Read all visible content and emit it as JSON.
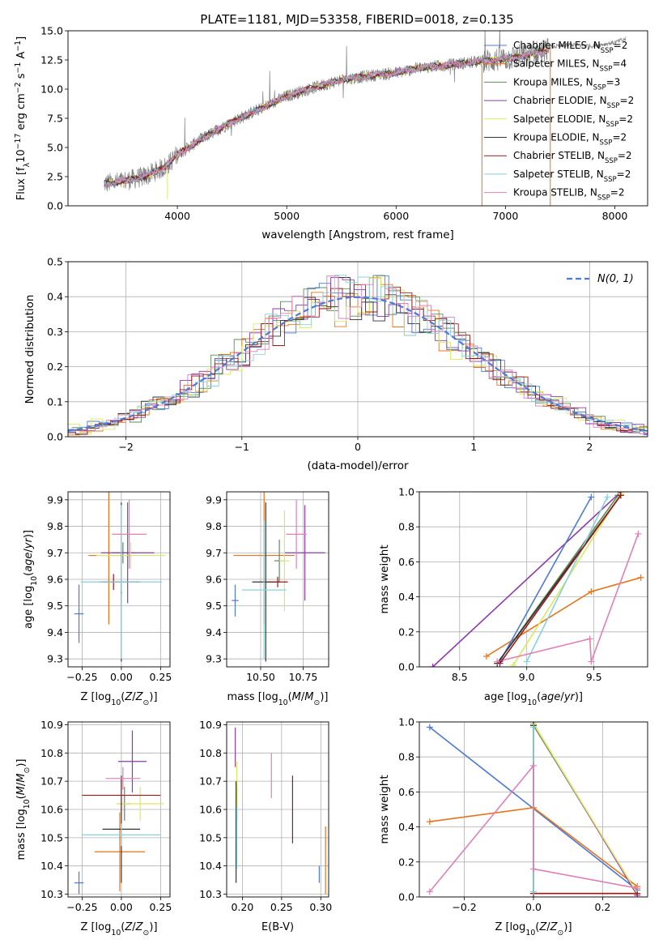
{
  "figure": {
    "title": "PLATE=1181, MJD=53358, FIBERID=0018, z=0.135"
  },
  "colors": {
    "c1": "#4e79d6",
    "c2": "#e8731a",
    "c3": "#5d8a5a",
    "c4": "#8e3aad",
    "c5": "#d9ea5b",
    "c6": "#333333",
    "c7": "#9a1a1a",
    "c8": "#88d1dd",
    "c9": "#e07fb8",
    "data": "#808080",
    "gauss": "#4e79d6"
  },
  "legend_spectrum": [
    "Chabrier MILES, N$_{SSP}$=2",
    "Salpeter MILES, N$_{SSP}$=4",
    "Kroupa MILES, N$_{SSP}$=3",
    "Chabrier ELODIE, N$_{SSP}$=2",
    "Salpeter ELODIE, N$_{SSP}$=2",
    "Kroupa ELODIE, N$_{SSP}$=2",
    "Chabrier STELIB, N$_{SSP}$=2",
    "Salpeter STELIB, N$_{SSP}$=2",
    "Kroupa STELIB, N$_{SSP}$=2"
  ],
  "chart_data": [
    {
      "id": "spectrum",
      "type": "line",
      "title": "PLATE=1181, MJD=53358, FIBERID=0018, z=0.135",
      "xlabel": "wavelength [Angstrom, rest frame]",
      "ylabel": "Flux [f_λ 10^-17 erg cm^-2 s^-1 A^-1]",
      "xlim": [
        3000,
        8300
      ],
      "ylim": [
        0,
        15
      ],
      "xticks": [
        4000,
        5000,
        6000,
        7000,
        8000
      ],
      "yticks": [
        0.0,
        2.5,
        5.0,
        7.5,
        10.0,
        12.5,
        15.0
      ],
      "continuum_x": [
        3330,
        3500,
        3700,
        3900,
        4000,
        4200,
        4500,
        4800,
        5000,
        5200,
        5500,
        5800,
        6000,
        6200,
        6500,
        6800,
        7000,
        7200,
        7400
      ],
      "continuum_y": [
        1.9,
        2.1,
        2.5,
        3.4,
        4.4,
        5.6,
        7.2,
        8.5,
        9.4,
        10.0,
        10.8,
        11.2,
        11.4,
        11.8,
        12.1,
        12.4,
        12.6,
        12.9,
        13.4
      ],
      "data_tail_x": [
        7400,
        7600,
        7800,
        8000,
        8100
      ],
      "data_tail_y": [
        13.6,
        13.8,
        13.7,
        14.0,
        14.3
      ],
      "grid": false,
      "legend": "top-right"
    },
    {
      "id": "residuals",
      "type": "line",
      "xlabel": "(data-model)/error",
      "ylabel": "Normed distribution",
      "xlim": [
        -2.5,
        2.5
      ],
      "ylim": [
        0,
        0.5
      ],
      "xticks": [
        -2,
        -1,
        0,
        1,
        2
      ],
      "yticks": [
        0.0,
        0.1,
        0.2,
        0.3,
        0.4,
        0.5
      ],
      "gaussian_label": "$\\mathcal{N}(0,1)$",
      "grid": true,
      "legend": "top-right"
    },
    {
      "id": "age_vs_Z",
      "type": "scatter",
      "xlabel": "Z [log10(Z/Z⊙)]",
      "ylabel": "age  [log10(age/yr)]",
      "xlim": [
        -0.34,
        0.31
      ],
      "ylim": [
        9.27,
        9.93
      ],
      "xticks": [
        -0.25,
        0.0,
        0.25
      ],
      "yticks": [
        9.3,
        9.4,
        9.5,
        9.6,
        9.7,
        9.8,
        9.9
      ],
      "grid": true,
      "points": [
        {
          "c": "c1",
          "x": -0.27,
          "xerr": 0.03,
          "y": 9.47,
          "yerr": 0.11
        },
        {
          "c": "c1",
          "x": 0.0,
          "xerr": 0.005,
          "y": 9.55,
          "yerr": 0.05
        },
        {
          "c": "c2",
          "x": -0.08,
          "xerr": 0.13,
          "y": 9.69,
          "yerr": 0.26
        },
        {
          "c": "c3",
          "x": 0.01,
          "xerr": 0.07,
          "y": 9.7,
          "yerr": 0.04
        },
        {
          "c": "c4",
          "x": 0.04,
          "xerr": 0.17,
          "y": 9.7,
          "yerr": 0.19
        },
        {
          "c": "c5",
          "x": 0.06,
          "xerr": 0.22,
          "y": 9.69,
          "yerr": 0.05
        },
        {
          "c": "c6",
          "x": 0.0,
          "xerr": 0.12,
          "y": 9.59,
          "yerr": 0.3
        },
        {
          "c": "c7",
          "x": -0.05,
          "xerr": 0.09,
          "y": 9.59,
          "yerr": 0.03
        },
        {
          "c": "c8",
          "x": 0.0,
          "xerr": 0.26,
          "y": 9.59,
          "yerr": 0.29
        },
        {
          "c": "c9",
          "x": 0.05,
          "xerr": 0.11,
          "y": 9.77,
          "yerr": 0.13
        }
      ]
    },
    {
      "id": "age_vs_mass",
      "type": "scatter",
      "xlabel": "mass [log10(M/M⊙)]",
      "ylabel": "",
      "xlim": [
        10.3,
        10.9
      ],
      "ylim": [
        9.27,
        9.93
      ],
      "xticks": [
        10.5,
        10.75
      ],
      "yticks": [
        9.3,
        9.4,
        9.5,
        9.6,
        9.7,
        9.8,
        9.9
      ],
      "grid": true,
      "points": [
        {
          "c": "c1",
          "x": 10.35,
          "xerr": 0.02,
          "y": 9.52,
          "yerr": 0.06
        },
        {
          "c": "c2",
          "x": 10.52,
          "xerr": 0.18,
          "y": 9.69,
          "yerr": 0.26
        },
        {
          "c": "c3",
          "x": 10.61,
          "xerr": 0.03,
          "y": 9.67,
          "yerr": 0.08
        },
        {
          "c": "c4",
          "x": 10.76,
          "xerr": 0.12,
          "y": 9.7,
          "yerr": 0.18
        },
        {
          "c": "c5",
          "x": 10.64,
          "xerr": 0.03,
          "y": 9.67,
          "yerr": 0.19
        },
        {
          "c": "c6",
          "x": 10.53,
          "xerr": 0.08,
          "y": 9.59,
          "yerr": 0.3
        },
        {
          "c": "c7",
          "x": 10.6,
          "xerr": 0.06,
          "y": 9.59,
          "yerr": 0.02
        },
        {
          "c": "c8",
          "x": 10.52,
          "xerr": 0.13,
          "y": 9.56,
          "yerr": 0.26
        },
        {
          "c": "c9",
          "x": 10.71,
          "xerr": 0.06,
          "y": 9.77,
          "yerr": 0.13
        }
      ]
    },
    {
      "id": "mass_weight_vs_age",
      "type": "line",
      "xlabel": "age  [log10(age/yr)]",
      "ylabel": "mass weight",
      "xlim": [
        8.2,
        9.9
      ],
      "ylim": [
        0,
        1
      ],
      "xticks": [
        8.5,
        9.0,
        9.5
      ],
      "yticks": [
        0.0,
        0.2,
        0.4,
        0.6,
        0.8,
        1.0
      ],
      "grid": true,
      "series": [
        {
          "c": "c4",
          "x": [
            8.3,
            9.7
          ],
          "y": [
            0.0,
            1.0
          ]
        },
        {
          "c": "c2",
          "x": [
            8.7,
            9.48,
            9.85
          ],
          "y": [
            0.06,
            0.43,
            0.51
          ]
        },
        {
          "c": "c3",
          "x": [
            8.78,
            9.68
          ],
          "y": [
            0.02,
            0.98
          ]
        },
        {
          "c": "c1",
          "x": [
            8.8,
            9.48
          ],
          "y": [
            0.03,
            0.97
          ]
        },
        {
          "c": "c5",
          "x": [
            8.9,
            9.7
          ],
          "y": [
            0.01,
            0.99
          ]
        },
        {
          "c": "c6",
          "x": [
            8.78,
            9.7
          ],
          "y": [
            0.02,
            0.98
          ]
        },
        {
          "c": "c8",
          "x": [
            9.0,
            9.6
          ],
          "y": [
            0.03,
            0.97
          ]
        },
        {
          "c": "c9",
          "x": [
            8.78,
            9.47,
            9.48,
            9.83
          ],
          "y": [
            0.03,
            0.16,
            0.03,
            0.76
          ]
        },
        {
          "c": "c7",
          "x": [
            8.8,
            9.7
          ],
          "y": [
            0.02,
            0.98
          ]
        }
      ]
    },
    {
      "id": "mass_vs_Z",
      "type": "scatter",
      "xlabel": "Z [log10(Z/Z⊙)]",
      "ylabel": "mass [log10(M/M⊙)]",
      "xlim": [
        -0.34,
        0.31
      ],
      "ylim": [
        10.29,
        10.91
      ],
      "xticks": [
        -0.25,
        0.0,
        0.25
      ],
      "yticks": [
        10.3,
        10.4,
        10.5,
        10.6,
        10.7,
        10.8,
        10.9
      ],
      "grid": true,
      "points": [
        {
          "c": "c1",
          "x": -0.27,
          "xerr": 0.03,
          "y": 10.34,
          "yerr": 0.04
        },
        {
          "c": "c2",
          "x": -0.01,
          "xerr": 0.16,
          "y": 10.45,
          "yerr": 0.14
        },
        {
          "c": "c3",
          "x": 0.02,
          "xerr": 0.04,
          "y": 10.62,
          "yerr": 0.06
        },
        {
          "c": "c4",
          "x": 0.07,
          "xerr": 0.09,
          "y": 10.77,
          "yerr": 0.11
        },
        {
          "c": "c5",
          "x": 0.12,
          "xerr": 0.15,
          "y": 10.62,
          "yerr": 0.06
        },
        {
          "c": "c6",
          "x": 0.0,
          "xerr": 0.12,
          "y": 10.53,
          "yerr": 0.19
        },
        {
          "c": "c7",
          "x": 0.0,
          "xerr": 0.25,
          "y": 10.65,
          "yerr": 0.06
        },
        {
          "c": "c8",
          "x": 0.0,
          "xerr": 0.25,
          "y": 10.51,
          "yerr": 0.04
        },
        {
          "c": "c9",
          "x": 0.01,
          "xerr": 0.11,
          "y": 10.71,
          "yerr": 0.04
        }
      ]
    },
    {
      "id": "mass_vs_ebv",
      "type": "scatter",
      "xlabel": "E(B-V)",
      "ylabel": "",
      "xlim": [
        0.18,
        0.31
      ],
      "ylim": [
        10.29,
        10.91
      ],
      "xticks": [
        0.2,
        0.25,
        0.3
      ],
      "yticks": [
        10.3,
        10.4,
        10.5,
        10.6,
        10.7,
        10.8,
        10.9
      ],
      "grid": true,
      "points": [
        {
          "c": "c1",
          "x": 0.298,
          "y": 10.37,
          "yerr": 0.03
        },
        {
          "c": "c2",
          "x": 0.306,
          "y": 10.42,
          "yerr": 0.12
        },
        {
          "c": "c3",
          "x": 0.193,
          "y": 10.62,
          "yerr": 0.06
        },
        {
          "c": "c4",
          "x": 0.191,
          "y": 10.82,
          "yerr": 0.07
        },
        {
          "c": "c5",
          "x": 0.193,
          "y": 10.69,
          "yerr": 0.08
        },
        {
          "c": "c6",
          "x": 0.192,
          "y": 10.52,
          "yerr": 0.18
        },
        {
          "c": "c7",
          "x": 0.264,
          "y": 10.6,
          "yerr": 0.12
        },
        {
          "c": "c8",
          "x": 0.193,
          "y": 10.5,
          "yerr": 0.11
        },
        {
          "c": "c9",
          "x": 0.237,
          "y": 10.72,
          "yerr": 0.08
        }
      ]
    },
    {
      "id": "mass_weight_vs_Z",
      "type": "line",
      "xlabel": "Z [log10(Z/Z⊙)]",
      "ylabel": "mass weight",
      "xlim": [
        -0.33,
        0.33
      ],
      "ylim": [
        0,
        1
      ],
      "xticks": [
        -0.2,
        0.0,
        0.2
      ],
      "yticks": [
        0.0,
        0.2,
        0.4,
        0.6,
        0.8,
        1.0
      ],
      "grid": true,
      "series": [
        {
          "c": "c1",
          "x": [
            -0.3,
            0.3
          ],
          "y": [
            0.97,
            0.04
          ]
        },
        {
          "c": "c2",
          "x": [
            -0.3,
            0.0,
            0.3
          ],
          "y": [
            0.43,
            0.51,
            0.06
          ]
        },
        {
          "c": "c3",
          "x": [
            0.0,
            0.3
          ],
          "y": [
            0.98,
            0.02
          ]
        },
        {
          "c": "c4",
          "x": [
            0.0,
            0.3
          ],
          "y": [
            0.99,
            0.01
          ]
        },
        {
          "c": "c5",
          "x": [
            0.0,
            0.3
          ],
          "y": [
            0.99,
            0.02
          ]
        },
        {
          "c": "c6",
          "x": [
            0.0,
            0.0
          ],
          "y": [
            0.02,
            0.98
          ]
        },
        {
          "c": "c7",
          "x": [
            0.0,
            0.3
          ],
          "y": [
            0.02,
            0.02
          ]
        },
        {
          "c": "c8",
          "x": [
            0.0,
            0.0
          ],
          "y": [
            0.03,
            0.97
          ]
        },
        {
          "c": "c9",
          "x": [
            -0.3,
            0.0,
            0.0,
            0.3
          ],
          "y": [
            0.03,
            0.75,
            0.16,
            0.05
          ]
        }
      ]
    }
  ]
}
